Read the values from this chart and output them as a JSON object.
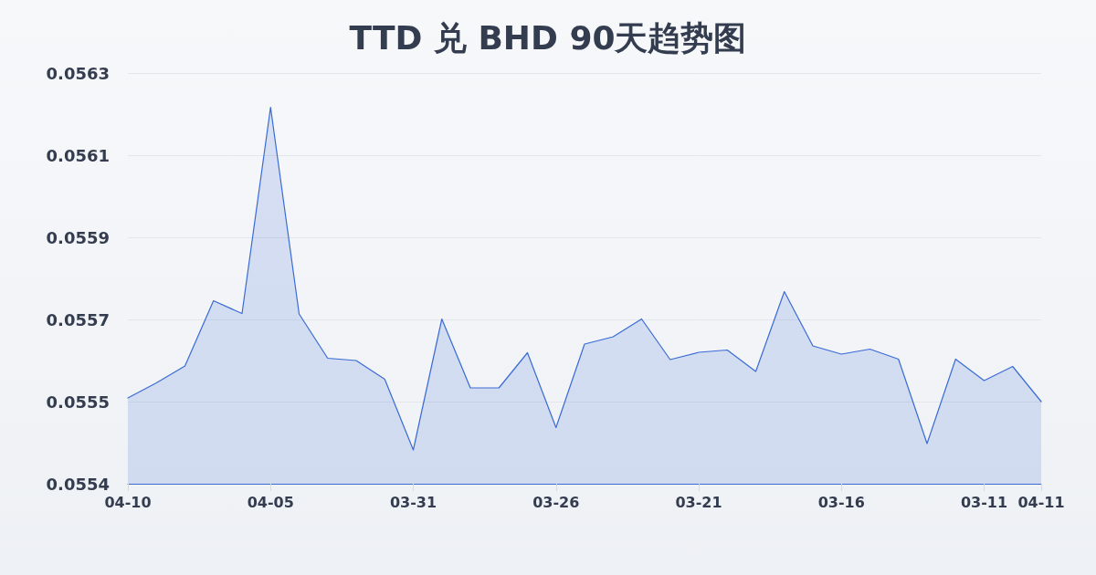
{
  "chart_data": {
    "type": "area",
    "title": "TTD 兑 BHD 90天趋势图",
    "categories": [
      "04-10",
      null,
      null,
      null,
      null,
      "04-05",
      null,
      null,
      null,
      null,
      "03-31",
      null,
      null,
      null,
      null,
      "03-26",
      null,
      null,
      null,
      null,
      "03-21",
      null,
      null,
      null,
      null,
      "03-16",
      null,
      null,
      null,
      null,
      "03-11",
      null,
      "04-11"
    ],
    "series": [
      {
        "color": "#3a6bd4",
        "values": [
          0.055538,
          0.055571,
          0.055608,
          0.055751,
          0.055723,
          0.056175,
          0.055722,
          0.055625,
          0.05562,
          0.055579,
          0.055424,
          0.055711,
          0.05556,
          0.05556,
          0.055637,
          0.055473,
          0.055656,
          0.055672,
          0.055711,
          0.055622,
          0.055638,
          0.055643,
          0.055596,
          0.055771,
          0.055652,
          0.055634,
          0.055645,
          0.055623,
          0.055438,
          0.055623,
          0.055576,
          0.055607,
          0.05553
        ]
      }
    ],
    "ylim": [
      0.05535,
      0.05625
    ],
    "yticks": [
      {
        "value": 0.05535,
        "label": "0.0554"
      },
      {
        "value": 0.05553,
        "label": "0.0555"
      },
      {
        "value": 0.05571,
        "label": "0.0557"
      },
      {
        "value": 0.05589,
        "label": "0.0559"
      },
      {
        "value": 0.05607,
        "label": "0.0561"
      },
      {
        "value": 0.05625,
        "label": "0.0563"
      }
    ],
    "grid": "y",
    "marker": "none"
  }
}
